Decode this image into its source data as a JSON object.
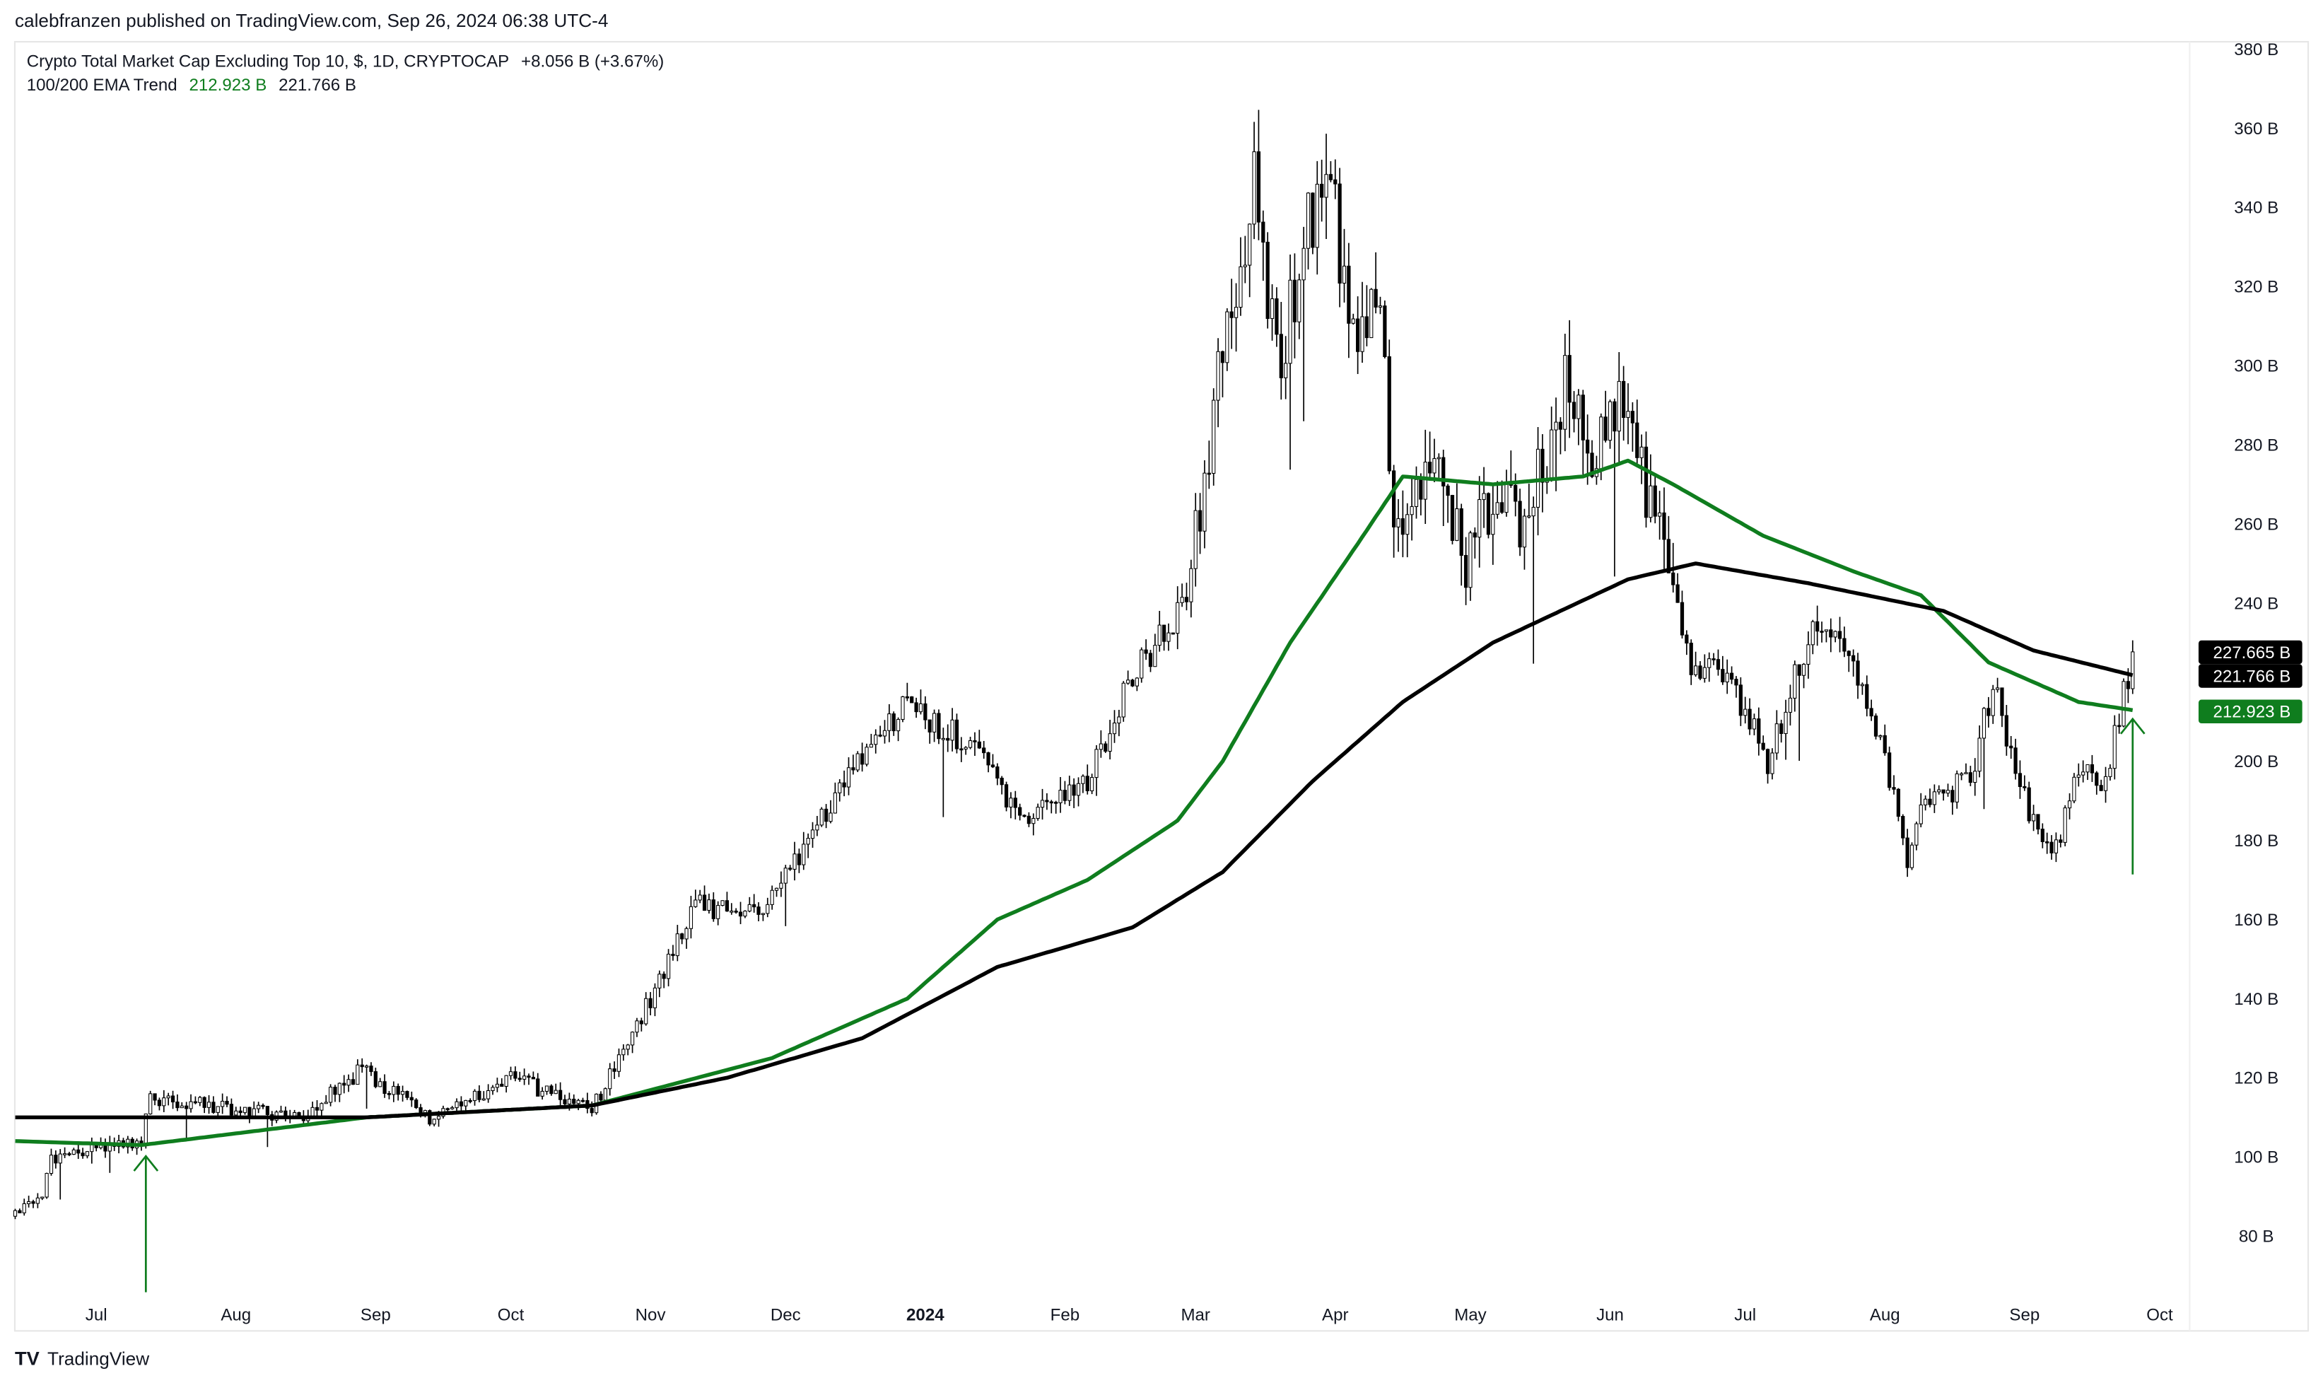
{
  "header": {
    "published": "calebfranzen published on TradingView.com, Sep 26, 2024 06:38 UTC-4",
    "symbol": "Crypto Total Market Cap Excluding Top 10, $, 1D, CRYPTOCAP",
    "change": "+8.056 B (+3.67%)",
    "indicator_name": "100/200 EMA Trend",
    "ema100_value": "212.923 B",
    "ema200_value": "221.766 B"
  },
  "footer": {
    "brand": "TradingView"
  },
  "colors": {
    "ema100": "#0f7d1e",
    "ema200": "#000000",
    "up_body": "#ffffff",
    "down_body": "#000000"
  },
  "chart_data": {
    "type": "candlestick",
    "title": "Crypto Total Market Cap Excluding Top 10, $, 1D, CRYPTOCAP",
    "xlabel": "",
    "ylabel": "",
    "x_unit": "days since 2023-07-01",
    "ylim": [
      62,
      390
    ],
    "xlim": [
      -19,
      475
    ],
    "y_ticks": [
      {
        "v": 380,
        "label": "380 B"
      },
      {
        "v": 360,
        "label": "360 B"
      },
      {
        "v": 340,
        "label": "340 B"
      },
      {
        "v": 320,
        "label": "320 B"
      },
      {
        "v": 300,
        "label": "300 B"
      },
      {
        "v": 280,
        "label": "280 B"
      },
      {
        "v": 260,
        "label": "260 B"
      },
      {
        "v": 240,
        "label": "240 B"
      },
      {
        "v": 200,
        "label": "200 B"
      },
      {
        "v": 180,
        "label": "180 B"
      },
      {
        "v": 160,
        "label": "160 B"
      },
      {
        "v": 140,
        "label": "140 B"
      },
      {
        "v": 120,
        "label": "120 B"
      },
      {
        "v": 100,
        "label": "100 B"
      },
      {
        "v": 80,
        "label": "80 B"
      }
    ],
    "x_ticks": [
      {
        "d": 0,
        "label": "Jul"
      },
      {
        "d": 31,
        "label": "Aug"
      },
      {
        "d": 62,
        "label": "Sep"
      },
      {
        "d": 92,
        "label": "Oct"
      },
      {
        "d": 123,
        "label": "Nov"
      },
      {
        "d": 153,
        "label": "Dec"
      },
      {
        "d": 184,
        "label": "2024",
        "bold": true
      },
      {
        "d": 215,
        "label": "Feb"
      },
      {
        "d": 244,
        "label": "Mar"
      },
      {
        "d": 275,
        "label": "Apr"
      },
      {
        "d": 305,
        "label": "May"
      },
      {
        "d": 336,
        "label": "Jun"
      },
      {
        "d": 366,
        "label": "Jul"
      },
      {
        "d": 397,
        "label": "Aug"
      },
      {
        "d": 428,
        "label": "Sep"
      },
      {
        "d": 458,
        "label": "Oct"
      }
    ],
    "price_keypoints": [
      [
        -18,
        85
      ],
      [
        -12,
        90
      ],
      [
        -10,
        100
      ],
      [
        0,
        102
      ],
      [
        10,
        103
      ],
      [
        12,
        115
      ],
      [
        30,
        112
      ],
      [
        45,
        110
      ],
      [
        59,
        122
      ],
      [
        74,
        110
      ],
      [
        92,
        120
      ],
      [
        110,
        112
      ],
      [
        123,
        140
      ],
      [
        133,
        165
      ],
      [
        143,
        160
      ],
      [
        150,
        165
      ],
      [
        163,
        190
      ],
      [
        180,
        215
      ],
      [
        186,
        210
      ],
      [
        193,
        205
      ],
      [
        206,
        185
      ],
      [
        220,
        195
      ],
      [
        229,
        220
      ],
      [
        242,
        240
      ],
      [
        249,
        295
      ],
      [
        257,
        345
      ],
      [
        262,
        300
      ],
      [
        270,
        340
      ],
      [
        275,
        340
      ],
      [
        278,
        305
      ],
      [
        285,
        320
      ],
      [
        288,
        255
      ],
      [
        296,
        280
      ],
      [
        304,
        250
      ],
      [
        311,
        270
      ],
      [
        317,
        260
      ],
      [
        326,
        295
      ],
      [
        332,
        280
      ],
      [
        340,
        290
      ],
      [
        347,
        255
      ],
      [
        354,
        225
      ],
      [
        363,
        220
      ],
      [
        371,
        200
      ],
      [
        381,
        235
      ],
      [
        388,
        230
      ],
      [
        396,
        205
      ],
      [
        402,
        175
      ],
      [
        406,
        190
      ],
      [
        416,
        195
      ],
      [
        421,
        220
      ],
      [
        426,
        195
      ],
      [
        434,
        175
      ],
      [
        441,
        200
      ],
      [
        446,
        195
      ],
      [
        452,
        227.665
      ]
    ],
    "series": [
      {
        "name": "EMA 100",
        "color": "#0f7d1e",
        "points": [
          [
            -18,
            104
          ],
          [
            10,
            103
          ],
          [
            60,
            110
          ],
          [
            110,
            113
          ],
          [
            150,
            125
          ],
          [
            180,
            140
          ],
          [
            200,
            160
          ],
          [
            220,
            170
          ],
          [
            240,
            185
          ],
          [
            250,
            200
          ],
          [
            265,
            230
          ],
          [
            280,
            255
          ],
          [
            290,
            272
          ],
          [
            310,
            270
          ],
          [
            330,
            272
          ],
          [
            340,
            276
          ],
          [
            350,
            270
          ],
          [
            370,
            257
          ],
          [
            390,
            248
          ],
          [
            405,
            242
          ],
          [
            420,
            225
          ],
          [
            440,
            215
          ],
          [
            452,
            212.923
          ]
        ]
      },
      {
        "name": "EMA 200",
        "color": "#000000",
        "points": [
          [
            -18,
            110
          ],
          [
            60,
            110
          ],
          [
            110,
            113
          ],
          [
            140,
            120
          ],
          [
            170,
            130
          ],
          [
            200,
            148
          ],
          [
            230,
            158
          ],
          [
            250,
            172
          ],
          [
            270,
            195
          ],
          [
            290,
            215
          ],
          [
            310,
            230
          ],
          [
            340,
            246
          ],
          [
            355,
            250
          ],
          [
            380,
            245
          ],
          [
            410,
            238
          ],
          [
            430,
            228
          ],
          [
            452,
            221.766
          ]
        ]
      }
    ],
    "last_price_tags": [
      {
        "label": "227.665 B",
        "v": 227.665,
        "color": "#000000"
      },
      {
        "label": "221.766 B",
        "v": 221.766,
        "color": "#000000"
      },
      {
        "label": "212.923 B",
        "v": 212.923,
        "color": "#0f7d1e"
      }
    ],
    "annotations": [
      {
        "type": "arrow",
        "d": 11,
        "from": 65.8,
        "to": 100.2,
        "color": "#0f7d1e"
      },
      {
        "type": "arrow",
        "d": 452,
        "from": 171.4,
        "to": 210.7,
        "color": "#0f7d1e"
      }
    ]
  }
}
